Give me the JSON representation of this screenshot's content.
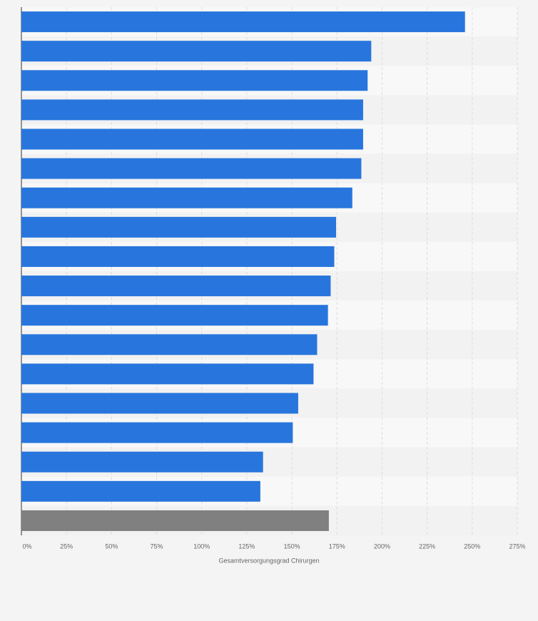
{
  "chart_data": {
    "type": "hbar",
    "x_label": "Gesamtversorgungsgrad Chirurgen",
    "categories": [
      null,
      null,
      null,
      null,
      null,
      null,
      null,
      null,
      null,
      null,
      null,
      null,
      null,
      null,
      null,
      null,
      null,
      null
    ],
    "values": [
      246,
      194,
      192,
      189.5,
      189.5,
      188.5,
      183.5,
      174.5,
      173.5,
      171.5,
      170,
      164,
      162,
      153.5,
      150.5,
      134,
      132.5,
      170.5
    ],
    "colors": [
      "#2876dd",
      "#2876dd",
      "#2876dd",
      "#2876dd",
      "#2876dd",
      "#2876dd",
      "#2876dd",
      "#2876dd",
      "#2876dd",
      "#2876dd",
      "#2876dd",
      "#2876dd",
      "#2876dd",
      "#2876dd",
      "#2876dd",
      "#2876dd",
      "#2876dd",
      "#808080"
    ],
    "xlim": [
      0,
      275
    ],
    "xticks": [
      {
        "value": 0,
        "label": "0%"
      },
      {
        "value": 25,
        "label": "25%"
      },
      {
        "value": 50,
        "label": "50%"
      },
      {
        "value": 75,
        "label": "75%"
      },
      {
        "value": 100,
        "label": "100%"
      },
      {
        "value": 125,
        "label": "125%"
      },
      {
        "value": 150,
        "label": "150%"
      },
      {
        "value": 175,
        "label": "175%"
      },
      {
        "value": 200,
        "label": "200%"
      },
      {
        "value": 225,
        "label": "225%"
      },
      {
        "value": 250,
        "label": "250%"
      },
      {
        "value": 275,
        "label": "275%"
      }
    ],
    "grid": true
  }
}
